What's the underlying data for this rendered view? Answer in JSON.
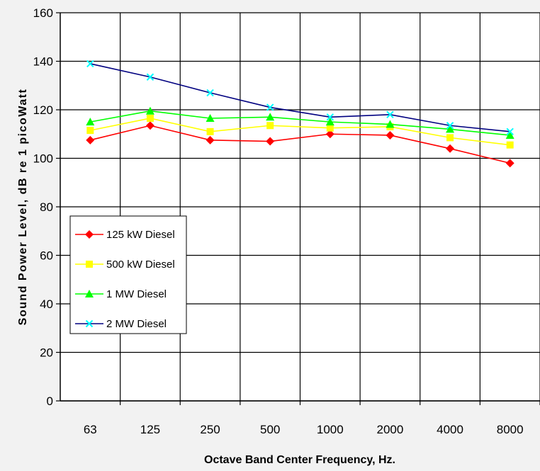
{
  "chart_data": {
    "type": "line",
    "title": "",
    "xlabel": "Octave Band Center Frequency, Hz.",
    "ylabel": "Sound Power Level, dB re 1 picoWatt",
    "categories": [
      "63",
      "125",
      "250",
      "500",
      "1000",
      "2000",
      "4000",
      "8000"
    ],
    "ylim": [
      0,
      160
    ],
    "yticks": [
      0,
      20,
      40,
      60,
      80,
      100,
      120,
      140,
      160
    ],
    "grid": true,
    "legend_position": "left",
    "series": [
      {
        "name": "125 kW Diesel",
        "color": "#ff0000",
        "marker": "diamond",
        "values": [
          107.5,
          113.5,
          107.5,
          107,
          110,
          109.5,
          104,
          98
        ]
      },
      {
        "name": "500 kW Diesel",
        "color": "#ffff00",
        "marker": "square",
        "values": [
          111.5,
          116.5,
          111,
          113.5,
          112.5,
          113,
          108.5,
          105.5
        ]
      },
      {
        "name": "1 MW Diesel",
        "color": "#00ff00",
        "marker": "triangle",
        "values": [
          115,
          119.5,
          116.5,
          117,
          115,
          114,
          112,
          109.5
        ]
      },
      {
        "name": "2 MW Diesel",
        "color": "#000080",
        "marker_color": "#00ffff",
        "marker": "x",
        "values": [
          139,
          133.5,
          127,
          121,
          117,
          118,
          113.5,
          111
        ]
      }
    ]
  }
}
